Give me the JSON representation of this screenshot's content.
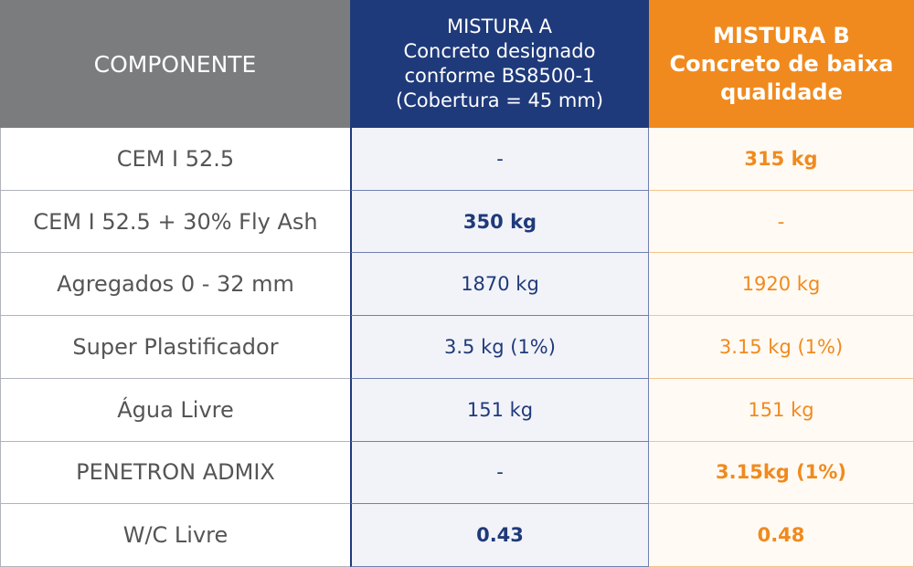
{
  "table": {
    "header": [
      [
        "COMPONENTE"
      ],
      [
        "MISTURA A",
        "Concreto designado",
        "conforme BS8500-1",
        "(Cobertura = 45 mm)"
      ],
      [
        "MISTURA B",
        "Concreto de baixa",
        "qualidade"
      ]
    ],
    "rows": [
      [
        "CEM I 52.5",
        "-",
        "315 kg"
      ],
      [
        "CEM I 52.5 + 30% Fly Ash",
        "350 kg",
        "-"
      ],
      [
        "Agregados 0 - 32 mm",
        "1870 kg",
        "1920 kg"
      ],
      [
        "Super Plastificador",
        "3.5 kg (1%)",
        "3.15 kg (1%)"
      ],
      [
        "Água Livre",
        "151 kg",
        "151 kg"
      ],
      [
        "PENETRON ADMIX",
        "-",
        "3.15kg (1%)"
      ],
      [
        "W/C Livre",
        "0.43",
        "0.48"
      ]
    ]
  }
}
